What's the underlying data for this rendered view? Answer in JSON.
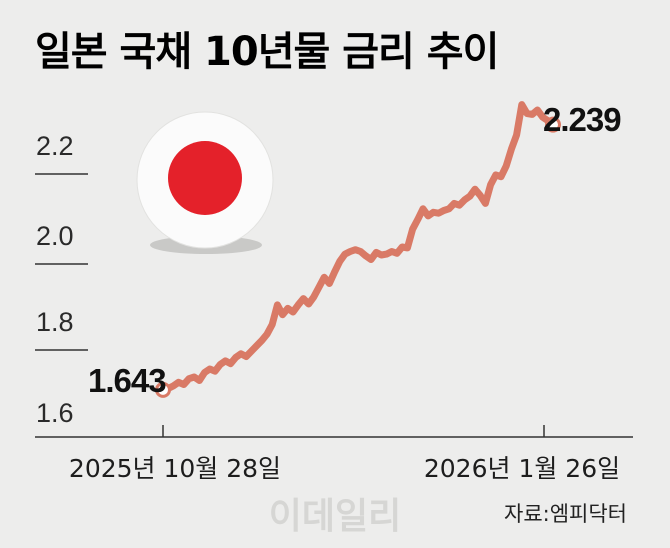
{
  "chart_data": {
    "type": "line",
    "title": "일본 국채 10년물 금리 추이",
    "yticks": [
      "1.6",
      "1.8",
      "2.0",
      "2.2"
    ],
    "ylim": [
      1.6,
      2.3
    ],
    "x_labels": [
      "2025년 10월 28일",
      "2026년 1월 26일"
    ],
    "start_label": "1.643",
    "end_label": "2.239",
    "series": [
      {
        "values": [
          1.643,
          1.646,
          1.652,
          1.66,
          1.655,
          1.668,
          1.672,
          1.664,
          1.682,
          1.69,
          1.685,
          1.7,
          1.708,
          1.702,
          1.716,
          1.724,
          1.718,
          1.73,
          1.742,
          1.754,
          1.768,
          1.79,
          1.834,
          1.812,
          1.826,
          1.818,
          1.834,
          1.848,
          1.836,
          1.852,
          1.874,
          1.896,
          1.882,
          1.908,
          1.932,
          1.948,
          1.954,
          1.958,
          1.954,
          1.944,
          1.936,
          1.952,
          1.946,
          1.948,
          1.954,
          1.95,
          1.964,
          1.962,
          2.004,
          2.026,
          2.05,
          2.034,
          2.042,
          2.04,
          2.046,
          2.05,
          2.062,
          2.058,
          2.07,
          2.078,
          2.094,
          2.08,
          2.062,
          2.104,
          2.126,
          2.122,
          2.146,
          2.184,
          2.216,
          2.284,
          2.264,
          2.262,
          2.272,
          2.256,
          2.248,
          2.239
        ],
        "color": "#d97a66"
      }
    ]
  },
  "decor": {
    "flag_icon": "japan-flag-icon",
    "flag_disc_color": "#e4212a",
    "watermark": "이데일리"
  },
  "source": "자료:엠피닥터"
}
